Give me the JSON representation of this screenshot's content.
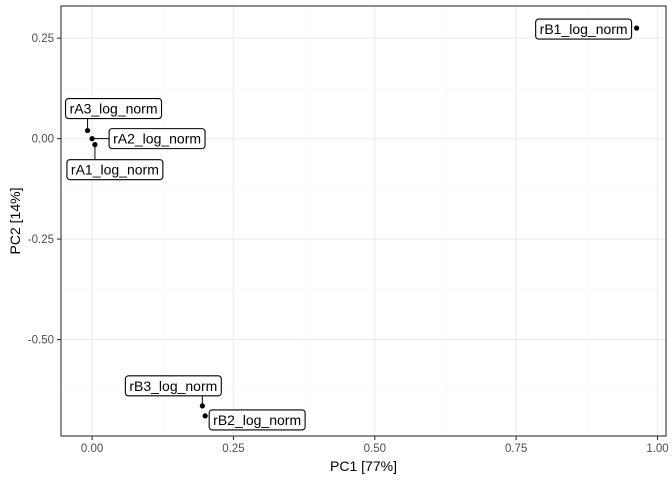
{
  "chart_data": {
    "type": "scatter",
    "xlabel": "PC1 [77%]",
    "ylabel": "PC2 [14%]",
    "xlim": [
      -0.055,
      1.015
    ],
    "ylim": [
      -0.74,
      0.33
    ],
    "x_ticks": [
      {
        "value": 0.0,
        "label": "0.00"
      },
      {
        "value": 0.25,
        "label": "0.25"
      },
      {
        "value": 0.5,
        "label": "0.50"
      },
      {
        "value": 0.75,
        "label": "0.75"
      },
      {
        "value": 1.0,
        "label": "1.00"
      }
    ],
    "y_ticks": [
      {
        "value": 0.25,
        "label": "0.25"
      },
      {
        "value": 0.0,
        "label": "0.00"
      },
      {
        "value": -0.25,
        "label": "-0.25"
      },
      {
        "value": -0.5,
        "label": "-0.50"
      }
    ],
    "grid": true,
    "points": [
      {
        "label": "rA1_log_norm",
        "x": 0.005,
        "y": -0.015
      },
      {
        "label": "rA2_log_norm",
        "x": 0.0,
        "y": 0.0
      },
      {
        "label": "rA3_log_norm",
        "x": -0.008,
        "y": 0.02
      },
      {
        "label": "rB1_log_norm",
        "x": 0.963,
        "y": 0.275
      },
      {
        "label": "rB2_log_norm",
        "x": 0.2,
        "y": -0.69
      },
      {
        "label": "rB3_log_norm",
        "x": 0.195,
        "y": -0.665
      }
    ]
  }
}
